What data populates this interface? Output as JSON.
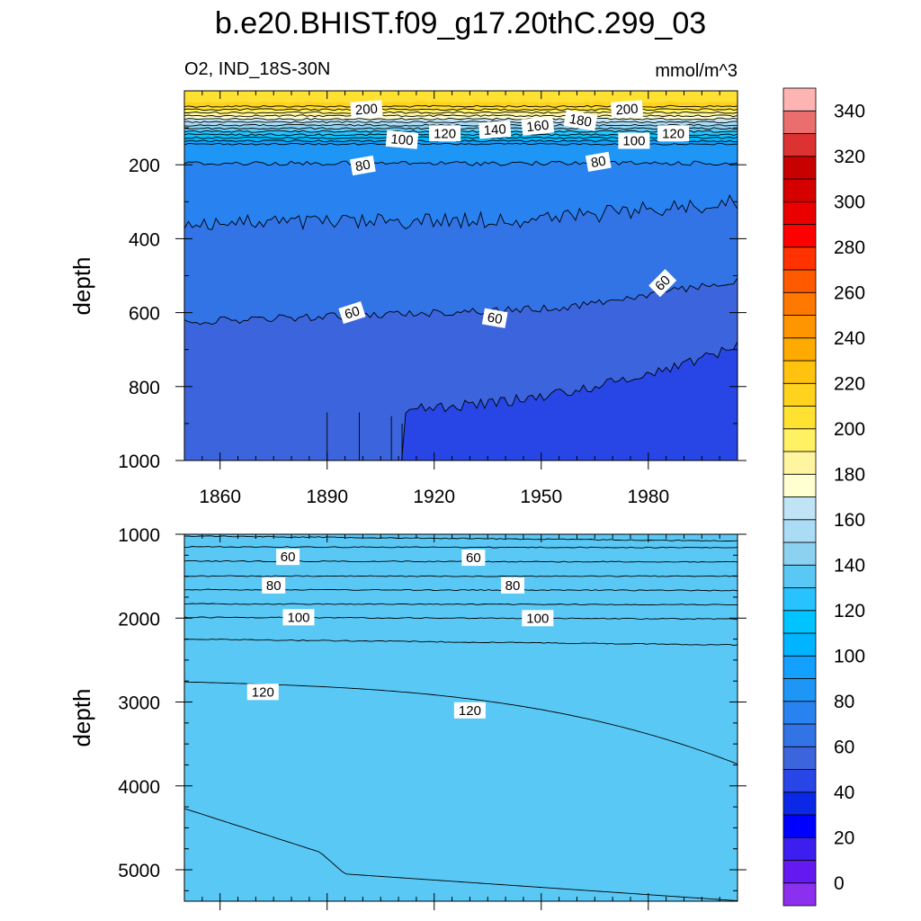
{
  "figure": {
    "title": "b.e20.BHIST.f09_g17.20thC.299_03",
    "variable_region": "O2, IND_18S-30N",
    "units": "mmol/m^3"
  },
  "colorbar": {
    "orientation": "vertical",
    "labels": [
      "0",
      "20",
      "40",
      "60",
      "80",
      "100",
      "120",
      "140",
      "160",
      "180",
      "200",
      "220",
      "240",
      "260",
      "280",
      "300",
      "320",
      "340"
    ],
    "levels": [
      0,
      10,
      20,
      30,
      40,
      50,
      60,
      70,
      80,
      90,
      100,
      110,
      120,
      130,
      140,
      150,
      160,
      170,
      180,
      190,
      200,
      210,
      220,
      230,
      240,
      250,
      260,
      270,
      280,
      290,
      300,
      310,
      320,
      330,
      340,
      350
    ],
    "colors": [
      "#8c30f0",
      "#6419f0",
      "#3c1ef0",
      "#0000ff",
      "#0a28e6",
      "#2846e6",
      "#3c64dc",
      "#3273e6",
      "#2882f0",
      "#1e96f5",
      "#14a0ff",
      "#00b4ff",
      "#00c3ff",
      "#28c3ff",
      "#5ac8f5",
      "#8cd2f0",
      "#aadcf5",
      "#c0e4f5",
      "#ffffd2",
      "#fff5a0",
      "#fff064",
      "#ffe132",
      "#ffd21e",
      "#ffc30f",
      "#ffaa00",
      "#ff9600",
      "#ff7800",
      "#ff5a00",
      "#ff3200",
      "#ff0000",
      "#eb0000",
      "#d70000",
      "#c80000",
      "#dc3232",
      "#eb6e6e",
      "#ffb4b4"
    ]
  },
  "chart_data": [
    {
      "type": "contour",
      "panel": "upper",
      "xlabel": "",
      "ylabel": "depth",
      "x_ticks": [
        "1860",
        "1890",
        "1920",
        "1950",
        "1980"
      ],
      "y_ticks": [
        "200",
        "400",
        "600",
        "800",
        "1000"
      ],
      "xlim": [
        1850,
        2005
      ],
      "ylim": [
        1000,
        0
      ],
      "contour_labels": [
        {
          "text": "200",
          "year": 1901,
          "depth": 50,
          "angle": -4
        },
        {
          "text": "200",
          "year": 1974,
          "depth": 50,
          "angle": -4
        },
        {
          "text": "180",
          "year": 1961,
          "depth": 80,
          "angle": 10
        },
        {
          "text": "160",
          "year": 1949,
          "depth": 95,
          "angle": -6
        },
        {
          "text": "140",
          "year": 1937,
          "depth": 105,
          "angle": -4
        },
        {
          "text": "120",
          "year": 1923,
          "depth": 115,
          "angle": 0
        },
        {
          "text": "120",
          "year": 1987,
          "depth": 115,
          "angle": 0
        },
        {
          "text": "100",
          "year": 1911,
          "depth": 132,
          "angle": 5
        },
        {
          "text": "100",
          "year": 1976,
          "depth": 135,
          "angle": 0
        },
        {
          "text": "80",
          "year": 1900,
          "depth": 202,
          "angle": -10
        },
        {
          "text": "80",
          "year": 1966,
          "depth": 192,
          "angle": -10
        },
        {
          "text": "60",
          "year": 1897,
          "depth": 600,
          "angle": -18
        },
        {
          "text": "60",
          "year": 1937,
          "depth": 615,
          "angle": 10
        },
        {
          "text": "60",
          "year": 1984,
          "depth": 520,
          "angle": -45
        }
      ]
    },
    {
      "type": "contour",
      "panel": "lower",
      "xlabel": "",
      "ylabel": "depth",
      "x_ticks": [],
      "y_ticks": [
        "1000",
        "2000",
        "3000",
        "4000",
        "5000"
      ],
      "xlim": [
        1850,
        2005
      ],
      "ylim": [
        5375,
        1000
      ],
      "contour_labels": [
        {
          "text": "60",
          "year": 1879,
          "depth": 1270,
          "angle": 0
        },
        {
          "text": "60",
          "year": 1931,
          "depth": 1280,
          "angle": 0
        },
        {
          "text": "80",
          "year": 1875,
          "depth": 1610,
          "angle": 0
        },
        {
          "text": "80",
          "year": 1942,
          "depth": 1610,
          "angle": 0
        },
        {
          "text": "100",
          "year": 1882,
          "depth": 1990,
          "angle": 0
        },
        {
          "text": "100",
          "year": 1949,
          "depth": 2000,
          "angle": 0
        },
        {
          "text": "120",
          "year": 1872,
          "depth": 2880,
          "angle": 0
        },
        {
          "text": "120",
          "year": 1930,
          "depth": 3100,
          "angle": 0
        }
      ]
    }
  ]
}
